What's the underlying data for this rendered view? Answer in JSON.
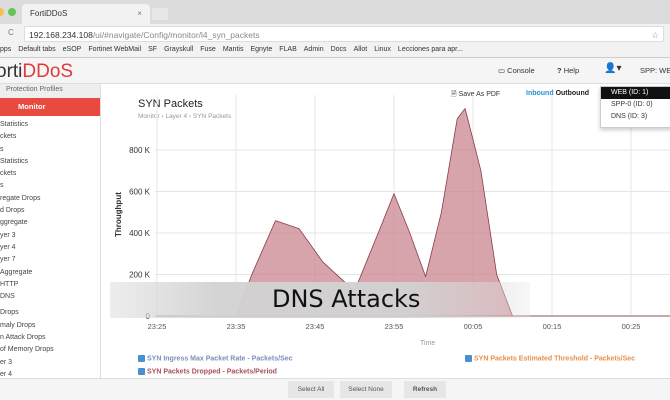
{
  "browser": {
    "tab_title": "FortiDDoS",
    "url_host": "192.168.234.108",
    "url_path": "/ui/#navigate/Config/monitor/l4_syn_packets",
    "bookmarks": [
      "pps",
      "Default tabs",
      "eSOP",
      "Fortinet WebMail",
      "SF",
      "Grayskull",
      "Fuse",
      "Mantis",
      "Egnyte",
      "FLAB",
      "Admin",
      "Docs",
      "Allot",
      "Linux",
      "Lecciones para apr..."
    ]
  },
  "header": {
    "logo_prefix": "orti",
    "logo_suffix": "DDoS",
    "console": "Console",
    "help": "Help",
    "spp": "SPP: WEB"
  },
  "sidebar": {
    "section": "Protection Profiles",
    "active": "Monitor",
    "items": [
      "Statistics",
      "ckets",
      "s",
      "Statistics",
      "ckets",
      "s",
      "regate Drops",
      "d Drops",
      "ggregate",
      "yer 3",
      "yer 4",
      "yer 7",
      "Aggregate",
      "HTTP",
      "DNS",
      "Drops",
      "maly Drops",
      "n Attack Drops",
      "of Memory Drops",
      "er 3",
      "er 4"
    ]
  },
  "page": {
    "title": "SYN Packets",
    "breadcrumb": "Monitor  ›  Layer 4  ›  SYN Packets",
    "save_pdf": "Save As PDF",
    "inbound": "Inbound",
    "outbound": "Outbound"
  },
  "spp_menu": [
    "WEB (ID: 1)",
    "SPP-0 (ID: 0)",
    "DNS (ID: 3)"
  ],
  "legend": [
    {
      "label": "SYN Ingress Max Packet Rate - Packets/Sec",
      "color": "#7a8fb8"
    },
    {
      "label": "SYN Packets Estimated Threshold - Packets/Sec",
      "color": "#e8904a"
    },
    {
      "label": "SYN Packets Dropped - Packets/Period",
      "color": "#a8505a"
    }
  ],
  "buttons": {
    "select_all": "Select All",
    "select_none": "Select None",
    "refresh": "Refresh"
  },
  "caption": "DNS Attacks",
  "chart_data": {
    "type": "area",
    "xlabel": "Time",
    "ylabel": "Throughput",
    "y_ticks": [
      "0",
      "200 K",
      "400 K",
      "600 K",
      "800 K"
    ],
    "ylim": [
      0,
      1000000
    ],
    "x_ticks": [
      "23:25",
      "23:35",
      "23:45",
      "23:55",
      "00:05",
      "00:15",
      "00:25"
    ],
    "grid": true,
    "fill": "#c9858f",
    "x": [
      "23:25",
      "23:35",
      "23:37",
      "23:40",
      "23:43",
      "23:46",
      "23:50",
      "23:53",
      "23:55",
      "23:57",
      "23:59",
      "00:01",
      "00:03",
      "00:04",
      "00:06",
      "00:08",
      "00:10",
      "00:30"
    ],
    "values": [
      0,
      0,
      200000,
      460000,
      420000,
      260000,
      120000,
      400000,
      590000,
      400000,
      190000,
      500000,
      950000,
      1000000,
      700000,
      200000,
      0,
      0
    ]
  }
}
